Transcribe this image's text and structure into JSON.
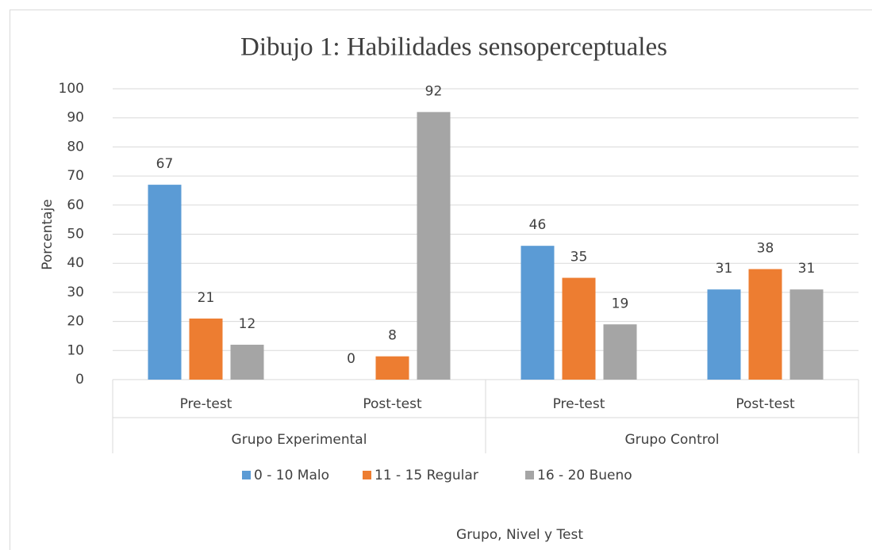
{
  "chart_data": {
    "type": "bar",
    "title": "Dibujo 1: Habilidades sensoperceptuales",
    "x_label": "Grupo, Nivel y Test",
    "y_label": "Porcentaje",
    "categories": [
      "Pre-test",
      "Post-test",
      "Pre-test",
      "Post-test"
    ],
    "groups": [
      "Grupo Experimental",
      "Grupo Control"
    ],
    "series": [
      {
        "name": "0 - 10 Malo",
        "color": "#5b9bd5",
        "values": [
          67,
          0,
          46,
          31
        ]
      },
      {
        "name": "11 - 15 Regular",
        "color": "#ed7d31",
        "values": [
          21,
          8,
          35,
          38
        ]
      },
      {
        "name": "16 - 20 Bueno",
        "color": "#a5a5a5",
        "values": [
          12,
          92,
          19,
          31
        ]
      }
    ],
    "ylim": [
      0,
      100
    ],
    "yticks": [
      0,
      10,
      20,
      30,
      40,
      50,
      60,
      70,
      80,
      90,
      100
    ],
    "grid": true,
    "legend": "bottom"
  }
}
